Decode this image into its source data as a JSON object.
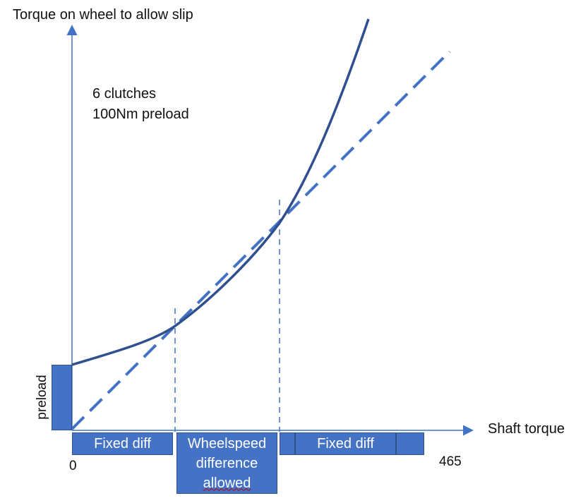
{
  "labels": {
    "y_axis_title": "Torque on wheel  to allow slip",
    "x_axis_title": "Shaft torque",
    "note_line1": "6 clutches",
    "note_line2": "100Nm preload",
    "x_tick_start": "0",
    "x_tick_end": "465",
    "preload_label": "preload"
  },
  "boxes": {
    "fixed_diff_left": "Fixed diff",
    "wheelspeed_line1": "Wheelspeed",
    "wheelspeed_line2": "difference",
    "wheelspeed_line3": "allowed",
    "fixed_diff_right": "Fixed diff"
  },
  "colors": {
    "curve": "#2f4f8f",
    "dashed_line": "#4472c4",
    "axis": "#4472c4",
    "box_fill": "#4472c4",
    "box_text": "#ffffff"
  }
}
